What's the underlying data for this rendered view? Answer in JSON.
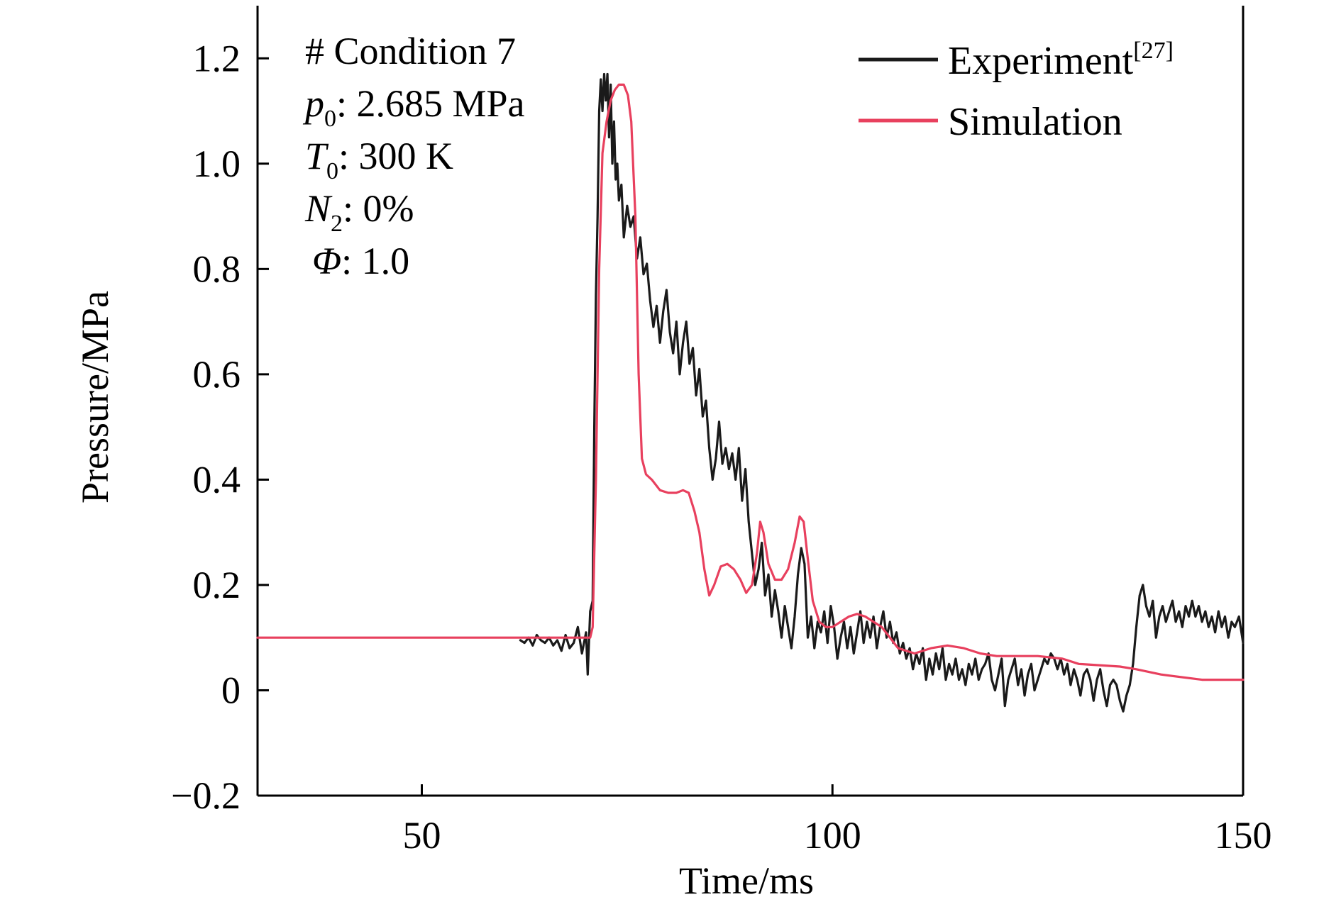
{
  "chart_data": {
    "type": "line",
    "xlabel": "Time/ms",
    "ylabel": "Pressure/MPa",
    "xlim": [
      30,
      150
    ],
    "ylim": [
      -0.2,
      1.3
    ],
    "x_ticks": [
      50,
      100,
      150
    ],
    "x_tick_labels": [
      "50",
      "100",
      "150"
    ],
    "y_ticks": [
      -0.2,
      0,
      0.2,
      0.4,
      0.6,
      0.8,
      1.0,
      1.2
    ],
    "y_tick_labels": [
      "−0.2",
      "0",
      "0.2",
      "0.4",
      "0.6",
      "0.8",
      "1.0",
      "1.2"
    ],
    "grid": false,
    "legend_position": "top-right",
    "annotations": [
      {
        "prefix": "# Condition 7",
        "sub": "",
        "suffix": ""
      },
      {
        "prefix": "p",
        "sub": "0",
        "suffix": ": 2.685 MPa"
      },
      {
        "prefix": "T",
        "sub": "0",
        "suffix": ": 300 K"
      },
      {
        "prefix": "N",
        "sub": "2",
        "suffix": ": 0%"
      },
      {
        "prefix": "Φ",
        "sub": "",
        "suffix": ": 1.0"
      }
    ],
    "series": [
      {
        "name": "Experiment",
        "name_superscript": "[27]",
        "color": "#1a1a1a",
        "points": [
          [
            62,
            0.095
          ],
          [
            62.5,
            0.09
          ],
          [
            63,
            0.1
          ],
          [
            63.5,
            0.085
          ],
          [
            64,
            0.105
          ],
          [
            64.5,
            0.095
          ],
          [
            65,
            0.09
          ],
          [
            65.5,
            0.1
          ],
          [
            66,
            0.085
          ],
          [
            66.5,
            0.095
          ],
          [
            67,
            0.075
          ],
          [
            67.5,
            0.105
          ],
          [
            68,
            0.08
          ],
          [
            68.5,
            0.09
          ],
          [
            69,
            0.12
          ],
          [
            69.5,
            0.07
          ],
          [
            70,
            0.11
          ],
          [
            70.2,
            0.03
          ],
          [
            70.5,
            0.15
          ],
          [
            70.8,
            0.17
          ],
          [
            71,
            0.5
          ],
          [
            71.2,
            0.75
          ],
          [
            71.4,
            0.9
          ],
          [
            71.6,
            1.1
          ],
          [
            71.8,
            1.16
          ],
          [
            72,
            1.1
          ],
          [
            72.2,
            1.17
          ],
          [
            72.4,
            1.12
          ],
          [
            72.6,
            1.17
          ],
          [
            72.8,
            1.05
          ],
          [
            73,
            1.15
          ],
          [
            73.2,
            1.0
          ],
          [
            73.4,
            1.08
          ],
          [
            73.6,
            0.97
          ],
          [
            73.8,
            1.0
          ],
          [
            74,
            0.93
          ],
          [
            74.3,
            0.96
          ],
          [
            74.6,
            0.86
          ],
          [
            75,
            0.92
          ],
          [
            75.4,
            0.88
          ],
          [
            75.8,
            0.9
          ],
          [
            76.2,
            0.82
          ],
          [
            76.6,
            0.86
          ],
          [
            77,
            0.79
          ],
          [
            77.4,
            0.81
          ],
          [
            77.8,
            0.74
          ],
          [
            78.2,
            0.69
          ],
          [
            78.6,
            0.73
          ],
          [
            79,
            0.66
          ],
          [
            79.4,
            0.72
          ],
          [
            79.8,
            0.76
          ],
          [
            80.2,
            0.68
          ],
          [
            80.6,
            0.64
          ],
          [
            81,
            0.7
          ],
          [
            81.4,
            0.6
          ],
          [
            81.8,
            0.66
          ],
          [
            82.2,
            0.7
          ],
          [
            82.6,
            0.62
          ],
          [
            83,
            0.65
          ],
          [
            83.4,
            0.56
          ],
          [
            83.8,
            0.61
          ],
          [
            84.2,
            0.52
          ],
          [
            84.6,
            0.55
          ],
          [
            85,
            0.46
          ],
          [
            85.4,
            0.4
          ],
          [
            85.8,
            0.44
          ],
          [
            86.2,
            0.51
          ],
          [
            86.6,
            0.43
          ],
          [
            87,
            0.46
          ],
          [
            87.4,
            0.42
          ],
          [
            87.8,
            0.45
          ],
          [
            88.2,
            0.4
          ],
          [
            88.6,
            0.46
          ],
          [
            89,
            0.36
          ],
          [
            89.4,
            0.42
          ],
          [
            89.8,
            0.32
          ],
          [
            90.2,
            0.26
          ],
          [
            90.6,
            0.2
          ],
          [
            91,
            0.23
          ],
          [
            91.4,
            0.28
          ],
          [
            91.8,
            0.18
          ],
          [
            92.2,
            0.22
          ],
          [
            92.6,
            0.14
          ],
          [
            93,
            0.19
          ],
          [
            93.4,
            0.15
          ],
          [
            93.8,
            0.1
          ],
          [
            94.2,
            0.16
          ],
          [
            94.6,
            0.12
          ],
          [
            95,
            0.08
          ],
          [
            95.4,
            0.14
          ],
          [
            95.8,
            0.22
          ],
          [
            96.2,
            0.27
          ],
          [
            96.6,
            0.24
          ],
          [
            97,
            0.1
          ],
          [
            97.4,
            0.14
          ],
          [
            97.8,
            0.08
          ],
          [
            98.2,
            0.13
          ],
          [
            98.6,
            0.11
          ],
          [
            99,
            0.15
          ],
          [
            99.4,
            0.09
          ],
          [
            99.8,
            0.16
          ],
          [
            100.2,
            0.12
          ],
          [
            100.6,
            0.06
          ],
          [
            101,
            0.1
          ],
          [
            101.4,
            0.13
          ],
          [
            101.8,
            0.08
          ],
          [
            102.2,
            0.12
          ],
          [
            102.6,
            0.07
          ],
          [
            103,
            0.11
          ],
          [
            103.4,
            0.15
          ],
          [
            103.8,
            0.09
          ],
          [
            104.2,
            0.13
          ],
          [
            104.6,
            0.1
          ],
          [
            105,
            0.14
          ],
          [
            105.4,
            0.08
          ],
          [
            105.8,
            0.12
          ],
          [
            106.2,
            0.15
          ],
          [
            106.6,
            0.1
          ],
          [
            107,
            0.13
          ],
          [
            107.4,
            0.09
          ],
          [
            107.8,
            0.11
          ],
          [
            108.2,
            0.07
          ],
          [
            108.6,
            0.09
          ],
          [
            109,
            0.06
          ],
          [
            109.4,
            0.08
          ],
          [
            109.8,
            0.04
          ],
          [
            110.2,
            0.07
          ],
          [
            110.6,
            0.05
          ],
          [
            111,
            0.08
          ],
          [
            111.4,
            0.02
          ],
          [
            111.8,
            0.06
          ],
          [
            112.2,
            0.03
          ],
          [
            112.6,
            0.07
          ],
          [
            113,
            0.04
          ],
          [
            113.4,
            0.08
          ],
          [
            113.8,
            0.02
          ],
          [
            114.2,
            0.05
          ],
          [
            114.6,
            0.03
          ],
          [
            115,
            0.06
          ],
          [
            115.4,
            0.02
          ],
          [
            115.8,
            0.04
          ],
          [
            116.2,
            0.01
          ],
          [
            116.6,
            0.05
          ],
          [
            117,
            0.03
          ],
          [
            117.4,
            0.06
          ],
          [
            117.8,
            0.02
          ],
          [
            118.2,
            0.04
          ],
          [
            118.6,
            0.05
          ],
          [
            119,
            0.07
          ],
          [
            119.4,
            0.02
          ],
          [
            119.8,
            0.0
          ],
          [
            120.2,
            0.03
          ],
          [
            120.6,
            0.06
          ],
          [
            121,
            -0.03
          ],
          [
            121.4,
            0.02
          ],
          [
            121.8,
            0.04
          ],
          [
            122.2,
            0.06
          ],
          [
            122.6,
            0.01
          ],
          [
            123,
            0.04
          ],
          [
            123.4,
            -0.01
          ],
          [
            123.8,
            0.03
          ],
          [
            124.2,
            0.05
          ],
          [
            124.6,
            0.0
          ],
          [
            125,
            0.02
          ],
          [
            125.4,
            0.04
          ],
          [
            125.8,
            0.06
          ],
          [
            126.2,
            0.05
          ],
          [
            126.6,
            0.07
          ],
          [
            127,
            0.06
          ],
          [
            127.4,
            0.04
          ],
          [
            127.8,
            0.06
          ],
          [
            128.2,
            0.03
          ],
          [
            128.6,
            0.05
          ],
          [
            129,
            0.01
          ],
          [
            129.4,
            0.04
          ],
          [
            129.8,
            0.02
          ],
          [
            130.2,
            -0.01
          ],
          [
            130.6,
            0.03
          ],
          [
            131,
            0.04
          ],
          [
            131.4,
            0.02
          ],
          [
            131.8,
            -0.02
          ],
          [
            132.2,
            0.02
          ],
          [
            132.6,
            0.04
          ],
          [
            133,
            0.0
          ],
          [
            133.4,
            -0.03
          ],
          [
            133.8,
            0.01
          ],
          [
            134.2,
            0.02
          ],
          [
            134.6,
            0.01
          ],
          [
            135,
            -0.02
          ],
          [
            135.4,
            -0.04
          ],
          [
            135.8,
            -0.01
          ],
          [
            136.2,
            0.01
          ],
          [
            136.6,
            0.05
          ],
          [
            137,
            0.12
          ],
          [
            137.4,
            0.18
          ],
          [
            137.8,
            0.2
          ],
          [
            138.2,
            0.16
          ],
          [
            138.6,
            0.14
          ],
          [
            139,
            0.17
          ],
          [
            139.4,
            0.1
          ],
          [
            139.8,
            0.14
          ],
          [
            140.2,
            0.16
          ],
          [
            140.6,
            0.13
          ],
          [
            141,
            0.15
          ],
          [
            141.4,
            0.17
          ],
          [
            141.8,
            0.13
          ],
          [
            142.2,
            0.15
          ],
          [
            142.6,
            0.12
          ],
          [
            143,
            0.16
          ],
          [
            143.4,
            0.14
          ],
          [
            143.8,
            0.17
          ],
          [
            144.2,
            0.14
          ],
          [
            144.6,
            0.16
          ],
          [
            145,
            0.13
          ],
          [
            145.4,
            0.15
          ],
          [
            145.8,
            0.12
          ],
          [
            146.2,
            0.14
          ],
          [
            146.6,
            0.11
          ],
          [
            147,
            0.15
          ],
          [
            147.4,
            0.12
          ],
          [
            147.8,
            0.14
          ],
          [
            148.2,
            0.1
          ],
          [
            148.6,
            0.13
          ],
          [
            149,
            0.12
          ],
          [
            149.5,
            0.14
          ],
          [
            150,
            0.09
          ]
        ]
      },
      {
        "name": "Simulation",
        "color": "#e8405e",
        "points": [
          [
            30,
            0.1
          ],
          [
            40,
            0.1
          ],
          [
            50,
            0.1
          ],
          [
            60,
            0.1
          ],
          [
            68,
            0.1
          ],
          [
            70.5,
            0.1
          ],
          [
            70.8,
            0.12
          ],
          [
            71.2,
            0.4
          ],
          [
            71.6,
            0.8
          ],
          [
            72,
            1.02
          ],
          [
            72.5,
            1.08
          ],
          [
            73,
            1.12
          ],
          [
            73.5,
            1.14
          ],
          [
            74,
            1.15
          ],
          [
            74.6,
            1.15
          ],
          [
            75.1,
            1.13
          ],
          [
            75.5,
            1.08
          ],
          [
            76,
            0.9
          ],
          [
            76.4,
            0.6
          ],
          [
            76.8,
            0.44
          ],
          [
            77.3,
            0.41
          ],
          [
            78,
            0.4
          ],
          [
            79,
            0.38
          ],
          [
            80,
            0.375
          ],
          [
            81,
            0.375
          ],
          [
            81.8,
            0.38
          ],
          [
            82.5,
            0.375
          ],
          [
            83.2,
            0.34
          ],
          [
            83.8,
            0.3
          ],
          [
            84.4,
            0.23
          ],
          [
            85,
            0.18
          ],
          [
            85.6,
            0.2
          ],
          [
            86.4,
            0.235
          ],
          [
            87.2,
            0.24
          ],
          [
            88,
            0.23
          ],
          [
            88.8,
            0.21
          ],
          [
            89.5,
            0.185
          ],
          [
            90.2,
            0.2
          ],
          [
            90.8,
            0.26
          ],
          [
            91.2,
            0.32
          ],
          [
            91.6,
            0.3
          ],
          [
            92.2,
            0.24
          ],
          [
            93,
            0.21
          ],
          [
            93.8,
            0.21
          ],
          [
            94.6,
            0.23
          ],
          [
            95.4,
            0.28
          ],
          [
            96,
            0.33
          ],
          [
            96.5,
            0.32
          ],
          [
            97,
            0.25
          ],
          [
            97.6,
            0.17
          ],
          [
            98.4,
            0.13
          ],
          [
            99.2,
            0.12
          ],
          [
            100,
            0.12
          ],
          [
            101,
            0.13
          ],
          [
            102,
            0.14
          ],
          [
            103,
            0.145
          ],
          [
            104,
            0.14
          ],
          [
            105,
            0.13
          ],
          [
            106,
            0.12
          ],
          [
            107,
            0.1
          ],
          [
            108,
            0.08
          ],
          [
            110,
            0.07
          ],
          [
            112,
            0.08
          ],
          [
            114,
            0.085
          ],
          [
            116,
            0.08
          ],
          [
            118,
            0.07
          ],
          [
            120,
            0.065
          ],
          [
            125,
            0.065
          ],
          [
            128,
            0.06
          ],
          [
            130,
            0.05
          ],
          [
            135,
            0.045
          ],
          [
            137,
            0.04
          ],
          [
            140,
            0.03
          ],
          [
            145,
            0.02
          ],
          [
            150,
            0.02
          ]
        ]
      }
    ]
  }
}
